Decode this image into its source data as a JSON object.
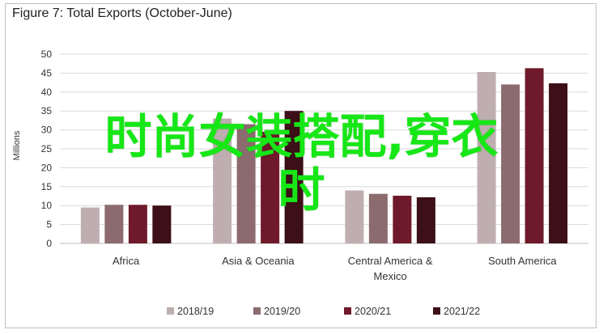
{
  "figure_title": "Figure 7: Total Exports (October-June)",
  "overlay_text": [
    "时尚女装搭配,穿衣",
    "时"
  ],
  "colors": {
    "overlay": "#17e617",
    "series": [
      "#bfaeb0",
      "#8c6b6e",
      "#6e1a2a",
      "#3d0f17"
    ],
    "grid": "#d9d9d9",
    "axis": "#bfbfbf"
  },
  "chart_data": {
    "type": "bar",
    "title": "Figure 7: Total Exports (October-June)",
    "ylabel": "Millions",
    "xlabel": "",
    "ylim": [
      0,
      50
    ],
    "yticks": [
      0,
      5,
      10,
      15,
      20,
      25,
      30,
      35,
      40,
      45,
      50
    ],
    "grid": true,
    "legend_position": "bottom",
    "categories": [
      [
        "Africa"
      ],
      [
        "Asia & Oceania"
      ],
      [
        "Central America &",
        "Mexico"
      ],
      [
        "South America"
      ]
    ],
    "series": [
      {
        "name": "2018/19",
        "values": [
          9.5,
          33,
          14,
          45.3
        ]
      },
      {
        "name": "2019/20",
        "values": [
          10.2,
          31.5,
          13.1,
          42
        ]
      },
      {
        "name": "2020/21",
        "values": [
          10.2,
          29.5,
          12.6,
          46.3
        ]
      },
      {
        "name": "2021/22",
        "values": [
          10,
          35,
          12.2,
          42.3
        ]
      }
    ]
  }
}
